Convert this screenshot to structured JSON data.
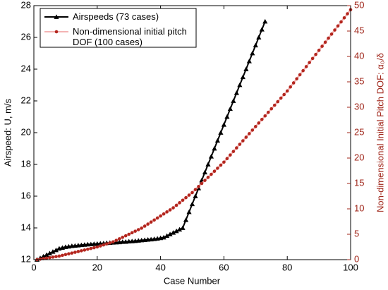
{
  "chart_data": {
    "type": "line",
    "xlabel": "Case Number",
    "ylabel": "Airspeed: U, m/s",
    "y2label": "Non-dimensional Initial Pitch DOF: α₀/δ",
    "xlim": [
      0,
      100
    ],
    "xticks": [
      0,
      20,
      40,
      60,
      80,
      100
    ],
    "ylim": [
      12,
      28
    ],
    "yticks": [
      12,
      14,
      16,
      18,
      20,
      22,
      24,
      26,
      28
    ],
    "y2lim": [
      0,
      50
    ],
    "y2ticks": [
      0,
      5,
      10,
      15,
      20,
      25,
      30,
      35,
      40,
      45,
      50
    ],
    "legend": "upper left",
    "series": [
      {
        "name": "Airspeeds (73 cases)",
        "color": "#000000",
        "marker": "triangle",
        "x": [
          1,
          2,
          3,
          4,
          5,
          6,
          7,
          8,
          9,
          10,
          11,
          12,
          13,
          14,
          15,
          16,
          17,
          18,
          19,
          20,
          21,
          22,
          23,
          24,
          25,
          26,
          27,
          28,
          29,
          30,
          31,
          32,
          33,
          34,
          35,
          36,
          37,
          38,
          39,
          40,
          41,
          42,
          43,
          44,
          45,
          46,
          47,
          48,
          49,
          50,
          51,
          52,
          53,
          54,
          55,
          56,
          57,
          58,
          59,
          60,
          61,
          62,
          63,
          64,
          65,
          66,
          67,
          68,
          69,
          70,
          71,
          72,
          73
        ],
        "values": [
          12.0,
          12.1,
          12.2,
          12.3,
          12.4,
          12.5,
          12.6,
          12.7,
          12.75,
          12.8,
          12.83,
          12.86,
          12.88,
          12.9,
          12.92,
          12.94,
          12.96,
          12.97,
          12.99,
          13.0,
          13.02,
          13.03,
          13.05,
          13.06,
          13.08,
          13.09,
          13.1,
          13.12,
          13.13,
          13.15,
          13.16,
          13.18,
          13.2,
          13.22,
          13.24,
          13.26,
          13.28,
          13.3,
          13.33,
          13.36,
          13.4,
          13.5,
          13.6,
          13.7,
          13.8,
          13.9,
          14.0,
          14.5,
          15.0,
          15.5,
          16.0,
          16.5,
          17.0,
          17.5,
          18.0,
          18.5,
          19.0,
          19.5,
          20.0,
          20.5,
          21.0,
          21.5,
          22.0,
          22.5,
          23.0,
          23.5,
          24.0,
          24.5,
          25.0,
          25.5,
          26.0,
          26.5,
          27.0
        ]
      },
      {
        "name": "Non-dimensional initial pitch DOF (100 cases)",
        "color": "#b3261e",
        "line_color": "#f4b4b4",
        "marker": "circle",
        "axis": "y2",
        "x": [
          1,
          2,
          3,
          4,
          5,
          6,
          7,
          8,
          9,
          10,
          11,
          12,
          13,
          14,
          15,
          16,
          17,
          18,
          19,
          20,
          21,
          22,
          23,
          24,
          25,
          26,
          27,
          28,
          29,
          30,
          31,
          32,
          33,
          34,
          35,
          36,
          37,
          38,
          39,
          40,
          41,
          42,
          43,
          44,
          45,
          46,
          47,
          48,
          49,
          50,
          51,
          52,
          53,
          54,
          55,
          56,
          57,
          58,
          59,
          60,
          61,
          62,
          63,
          64,
          65,
          66,
          67,
          68,
          69,
          70,
          71,
          72,
          73,
          74,
          75,
          76,
          77,
          78,
          79,
          80,
          81,
          82,
          83,
          84,
          85,
          86,
          87,
          88,
          89,
          90,
          91,
          92,
          93,
          94,
          95,
          96,
          97,
          98,
          99,
          100
        ],
        "values": [
          0,
          0.1,
          0.2,
          0.3,
          0.4,
          0.5,
          0.6,
          0.7,
          0.85,
          1.0,
          1.15,
          1.3,
          1.45,
          1.6,
          1.75,
          1.9,
          2.05,
          2.2,
          2.35,
          2.5,
          2.7,
          2.9,
          3.1,
          3.3,
          3.5,
          3.8,
          4.1,
          4.4,
          4.7,
          5.0,
          5.3,
          5.6,
          5.9,
          6.2,
          6.6,
          7.0,
          7.4,
          7.8,
          8.2,
          8.6,
          9.0,
          9.4,
          9.8,
          10.2,
          10.7,
          11.2,
          11.7,
          12.2,
          12.7,
          13.2,
          13.8,
          14.4,
          15.0,
          15.6,
          16.2,
          16.8,
          17.4,
          18.0,
          18.6,
          19.2,
          19.9,
          20.6,
          21.3,
          22.0,
          22.7,
          23.4,
          24.1,
          24.8,
          25.5,
          26.2,
          26.9,
          27.6,
          28.3,
          29.0,
          29.7,
          30.4,
          31.1,
          31.8,
          32.5,
          33.2,
          34.0,
          34.8,
          35.6,
          36.4,
          37.2,
          38.0,
          38.8,
          39.6,
          40.4,
          41.2,
          42.0,
          42.8,
          43.6,
          44.4,
          45.2,
          46.0,
          46.8,
          47.6,
          48.4,
          49.2
        ]
      }
    ]
  }
}
